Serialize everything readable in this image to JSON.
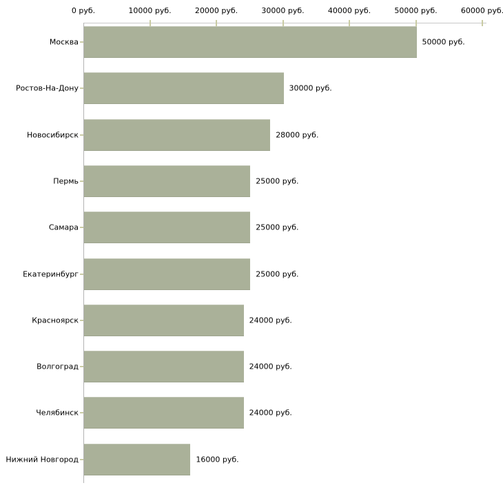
{
  "chart_data": {
    "type": "bar",
    "orientation": "horizontal",
    "categories": [
      "Москва",
      "Ростов-На-Дону",
      "Новосибирск",
      "Пермь",
      "Самара",
      "Екатеринбург",
      "Красноярск",
      "Волгоград",
      "Челябинск",
      "Нижний Новгород"
    ],
    "values": [
      50000,
      30000,
      28000,
      25000,
      25000,
      25000,
      24000,
      24000,
      24000,
      16000
    ],
    "value_labels": [
      "50000 руб.",
      "30000 руб.",
      "28000 руб.",
      "25000 руб.",
      "25000 руб.",
      "25000 руб.",
      "24000 руб.",
      "24000 руб.",
      "24000 руб.",
      "16000 руб."
    ],
    "x_axis": {
      "position": "top",
      "min": 0,
      "max": 60000,
      "tick_interval": 10000,
      "tick_labels": [
        "0 руб.",
        "10000 руб.",
        "20000 руб.",
        "30000 руб.",
        "40000 руб.",
        "50000 руб.",
        "60000 руб."
      ]
    },
    "legend": "none",
    "grid": "off",
    "colors": {
      "bar": "#aab199",
      "axis_line_horizontal": "#c9c9c9",
      "axis_line_vertical": "#b3b3b3",
      "tick_mark": "#c9cba3",
      "text": "#000000",
      "background": "#ffffff"
    }
  }
}
